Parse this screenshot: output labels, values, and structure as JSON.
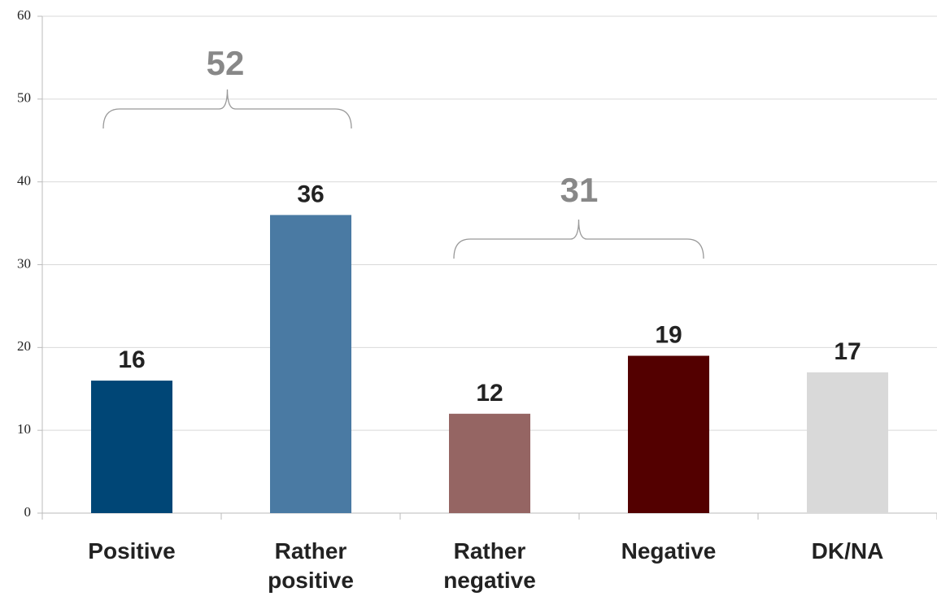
{
  "chart_data": {
    "type": "bar",
    "categories": [
      "Positive",
      "Rather positive",
      "Rather negative",
      "Negative",
      "DK/NA"
    ],
    "values": [
      16,
      36,
      12,
      19,
      17
    ],
    "colors": [
      "#004676",
      "#4a7aa3",
      "#956563",
      "#530000",
      "#d9d9d9"
    ],
    "ylim": [
      0,
      60
    ],
    "yticks": [
      0,
      10,
      20,
      30,
      40,
      50,
      60
    ],
    "grid": true,
    "annotations": [
      "52",
      "31"
    ]
  }
}
